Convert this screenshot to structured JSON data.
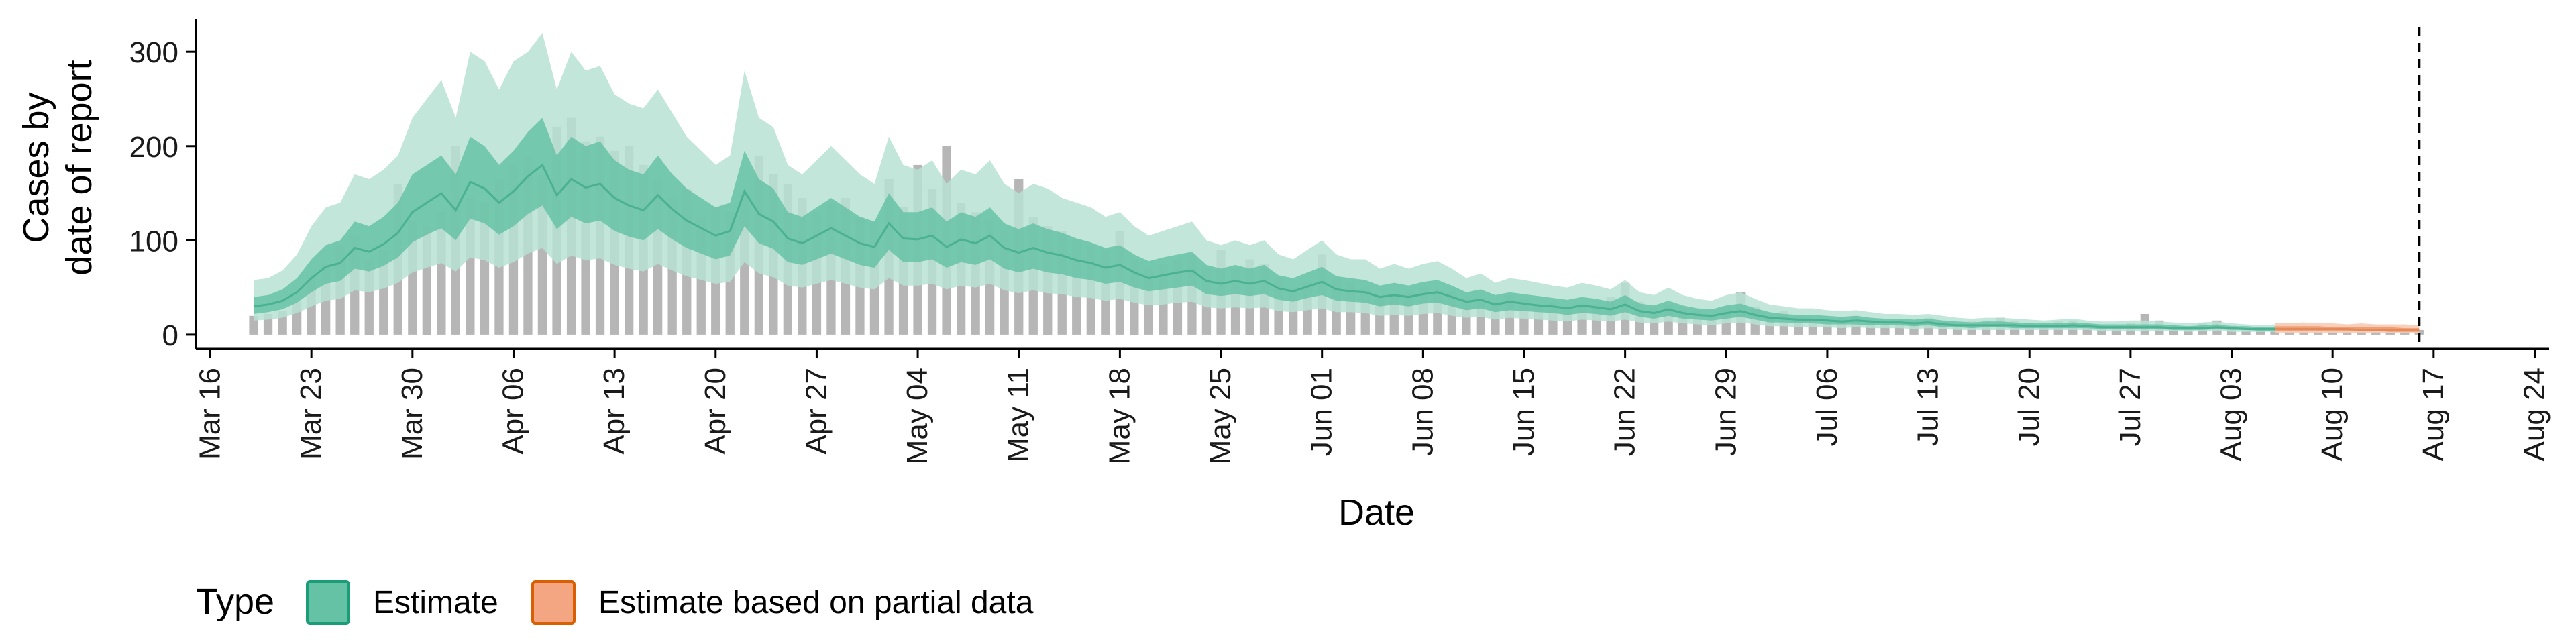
{
  "chart_data": {
    "type": "area",
    "xlabel": "Date",
    "ylabel_lines": [
      "Cases by",
      "date of report"
    ],
    "x_ticks": [
      "Mar 16",
      "Mar 23",
      "Mar 30",
      "Apr 06",
      "Apr 13",
      "Apr 20",
      "Apr 27",
      "May 04",
      "May 11",
      "May 18",
      "May 25",
      "Jun 01",
      "Jun 08",
      "Jun 15",
      "Jun 22",
      "Jun 29",
      "Jul 06",
      "Jul 13",
      "Jul 20",
      "Jul 27",
      "Aug 03",
      "Aug 10",
      "Aug 17",
      "Aug 24"
    ],
    "y_ticks": [
      0,
      100,
      200,
      300
    ],
    "ylim": [
      -15,
      335
    ],
    "x_range": [
      "2020-03-15",
      "2020-08-25"
    ],
    "reference_line_date": "2020-08-16",
    "legend": {
      "title": "Type",
      "placement": "bottom",
      "items": [
        {
          "label": "Estimate",
          "fill": "#66c2a5",
          "border": "#1b9e77"
        },
        {
          "label": "Estimate based on partial data",
          "fill": "#f4a582",
          "border": "#d95f02"
        }
      ]
    },
    "colors": {
      "bars": "#a9a9a9",
      "estimate_outer": "#b8e2d4",
      "estimate_inner": "#66c2a5",
      "estimate_median": "#3aa885",
      "partial_outer": "#f9cbb5",
      "partial_inner": "#ef9a6e",
      "partial_median": "#e08050"
    },
    "reported_cases": {
      "start": "2020-03-19",
      "values": [
        20,
        22,
        25,
        35,
        60,
        75,
        95,
        105,
        80,
        90,
        160,
        120,
        115,
        130,
        200,
        145,
        140,
        165,
        180,
        190,
        170,
        220,
        230,
        205,
        210,
        195,
        200,
        180,
        165,
        145,
        155,
        125,
        135,
        130,
        150,
        190,
        170,
        160,
        145,
        130,
        140,
        145,
        125,
        120,
        165,
        135,
        180,
        155,
        200,
        140,
        130,
        120,
        110,
        165,
        125,
        115,
        110,
        100,
        95,
        90,
        110,
        80,
        70,
        75,
        80,
        85,
        72,
        90,
        70,
        80,
        75,
        60,
        50,
        55,
        85,
        60,
        55,
        50,
        40,
        42,
        45,
        50,
        48,
        45,
        40,
        38,
        35,
        42,
        38,
        32,
        35,
        28,
        30,
        32,
        40,
        55,
        35,
        30,
        32,
        28,
        25,
        22,
        30,
        45,
        30,
        20,
        25,
        20,
        15,
        15,
        18,
        20,
        16,
        15,
        14,
        15,
        18,
        15,
        12,
        14,
        15,
        18,
        15,
        12,
        10,
        14,
        15,
        12,
        10,
        9,
        12,
        22,
        15,
        10,
        9,
        12,
        15,
        10,
        9,
        8,
        8,
        7,
        6,
        7,
        6,
        6,
        8,
        7,
        6,
        5,
        5
      ]
    },
    "estimate": {
      "start": "2020-03-19",
      "q90_upper": [
        58,
        60,
        68,
        85,
        115,
        135,
        140,
        170,
        165,
        175,
        190,
        230,
        250,
        270,
        230,
        300,
        290,
        260,
        290,
        300,
        320,
        260,
        300,
        280,
        285,
        255,
        245,
        240,
        260,
        235,
        210,
        195,
        180,
        190,
        280,
        230,
        220,
        180,
        170,
        185,
        200,
        185,
        170,
        160,
        210,
        180,
        175,
        185,
        160,
        175,
        170,
        185,
        160,
        150,
        160,
        155,
        145,
        140,
        135,
        125,
        130,
        115,
        105,
        110,
        115,
        120,
        100,
        95,
        100,
        95,
        100,
        85,
        80,
        90,
        100,
        85,
        80,
        80,
        70,
        75,
        70,
        75,
        78,
        70,
        60,
        65,
        55,
        60,
        58,
        55,
        52,
        50,
        55,
        52,
        48,
        58,
        45,
        42,
        50,
        42,
        38,
        36,
        42,
        45,
        38,
        32,
        30,
        28,
        28,
        26,
        25,
        26,
        24,
        22,
        22,
        21,
        22,
        20,
        18,
        17,
        18,
        18,
        17,
        16,
        15,
        16,
        17,
        15,
        14,
        14,
        15,
        15,
        14,
        13,
        12,
        13,
        14,
        12,
        11,
        10,
        11,
        12,
        11,
        10,
        9,
        10,
        10,
        10,
        9,
        9,
        9
      ],
      "q50_upper": [
        40,
        42,
        48,
        60,
        80,
        95,
        100,
        120,
        115,
        125,
        140,
        170,
        180,
        190,
        170,
        210,
        200,
        180,
        195,
        215,
        230,
        190,
        210,
        200,
        205,
        185,
        175,
        170,
        190,
        170,
        155,
        145,
        135,
        140,
        195,
        165,
        155,
        130,
        125,
        135,
        145,
        135,
        125,
        120,
        150,
        130,
        130,
        135,
        120,
        130,
        125,
        135,
        118,
        112,
        118,
        112,
        108,
        102,
        98,
        92,
        95,
        85,
        78,
        82,
        85,
        88,
        74,
        70,
        74,
        70,
        74,
        63,
        60,
        66,
        72,
        62,
        60,
        58,
        52,
        55,
        52,
        56,
        58,
        52,
        45,
        48,
        42,
        45,
        43,
        41,
        39,
        37,
        40,
        38,
        35,
        42,
        33,
        31,
        36,
        31,
        28,
        27,
        31,
        33,
        28,
        24,
        22,
        21,
        21,
        20,
        19,
        20,
        18,
        17,
        17,
        16,
        17,
        15,
        14,
        13,
        14,
        14,
        13,
        12,
        12,
        12,
        13,
        12,
        11,
        11,
        11,
        11,
        11,
        10,
        9,
        10,
        11,
        9,
        9,
        8,
        8,
        9,
        8,
        8,
        7,
        7,
        7,
        7,
        7,
        7,
        7
      ],
      "median": [
        30,
        32,
        36,
        45,
        60,
        72,
        76,
        92,
        88,
        96,
        108,
        130,
        140,
        150,
        132,
        162,
        155,
        140,
        152,
        168,
        180,
        148,
        165,
        156,
        160,
        145,
        137,
        132,
        148,
        133,
        121,
        113,
        105,
        110,
        152,
        128,
        120,
        102,
        97,
        105,
        113,
        105,
        97,
        93,
        118,
        102,
        101,
        105,
        93,
        101,
        97,
        105,
        92,
        87,
        92,
        87,
        84,
        79,
        76,
        71,
        74,
        66,
        60,
        63,
        66,
        68,
        57,
        54,
        57,
        54,
        57,
        49,
        46,
        51,
        56,
        48,
        46,
        45,
        40,
        42,
        40,
        43,
        45,
        40,
        35,
        37,
        32,
        35,
        33,
        31,
        30,
        28,
        31,
        29,
        27,
        32,
        25,
        23,
        27,
        23,
        21,
        20,
        23,
        25,
        21,
        18,
        17,
        16,
        16,
        15,
        14,
        15,
        14,
        13,
        13,
        12,
        13,
        11,
        10,
        10,
        10,
        10,
        10,
        9,
        9,
        9,
        10,
        9,
        8,
        8,
        8,
        8,
        8,
        7,
        7,
        7,
        8,
        7,
        6,
        6,
        6,
        7,
        6,
        6,
        5,
        5,
        5,
        5,
        5,
        5,
        5
      ],
      "q50_lower": [
        22,
        24,
        27,
        34,
        45,
        54,
        57,
        70,
        67,
        73,
        82,
        98,
        106,
        113,
        100,
        123,
        118,
        106,
        115,
        128,
        137,
        112,
        125,
        118,
        121,
        110,
        104,
        100,
        112,
        101,
        92,
        86,
        80,
        84,
        115,
        97,
        91,
        77,
        74,
        80,
        86,
        80,
        74,
        71,
        90,
        77,
        77,
        80,
        71,
        77,
        74,
        80,
        70,
        66,
        70,
        66,
        64,
        60,
        58,
        54,
        56,
        50,
        46,
        48,
        50,
        52,
        43,
        41,
        43,
        41,
        43,
        37,
        35,
        39,
        42,
        36,
        35,
        34,
        30,
        32,
        30,
        33,
        34,
        30,
        26,
        28,
        24,
        26,
        25,
        24,
        23,
        21,
        23,
        22,
        20,
        24,
        19,
        17,
        20,
        17,
        16,
        15,
        17,
        19,
        16,
        13,
        13,
        12,
        12,
        11,
        11,
        11,
        10,
        10,
        10,
        9,
        10,
        8,
        8,
        7,
        8,
        8,
        7,
        7,
        7,
        7,
        7,
        7,
        6,
        6,
        6,
        6,
        6,
        5,
        5,
        5,
        6,
        5,
        5,
        4,
        4,
        5,
        4,
        4,
        4,
        4,
        4,
        4,
        4,
        4,
        4
      ],
      "q90_lower": [
        15,
        16,
        18,
        23,
        30,
        36,
        38,
        47,
        45,
        49,
        55,
        66,
        71,
        76,
        67,
        82,
        79,
        71,
        77,
        86,
        92,
        75,
        84,
        79,
        81,
        74,
        70,
        67,
        75,
        68,
        62,
        58,
        54,
        56,
        77,
        65,
        61,
        52,
        50,
        54,
        58,
        54,
        50,
        48,
        60,
        52,
        52,
        54,
        48,
        52,
        50,
        54,
        47,
        44,
        47,
        44,
        43,
        40,
        39,
        36,
        38,
        34,
        31,
        32,
        34,
        35,
        29,
        28,
        29,
        28,
        29,
        25,
        24,
        26,
        28,
        24,
        24,
        23,
        20,
        21,
        20,
        22,
        23,
        20,
        18,
        19,
        16,
        18,
        17,
        16,
        15,
        14,
        16,
        15,
        14,
        16,
        13,
        12,
        14,
        12,
        11,
        10,
        12,
        13,
        11,
        9,
        9,
        8,
        8,
        8,
        7,
        8,
        7,
        7,
        7,
        6,
        7,
        6,
        5,
        5,
        5,
        5,
        5,
        5,
        5,
        5,
        5,
        5,
        4,
        4,
        4,
        4,
        4,
        4,
        3,
        4,
        4,
        3,
        3,
        3,
        3,
        3,
        3,
        3,
        3,
        3,
        3,
        3,
        3,
        3,
        3
      ]
    },
    "partial_estimate": {
      "start": "2020-08-06",
      "q90_upper": [
        12,
        12,
        13,
        12,
        12,
        11,
        12,
        11,
        11,
        11,
        10
      ],
      "q50_upper": [
        9,
        9,
        9,
        9,
        8,
        8,
        8,
        8,
        8,
        7,
        7
      ],
      "median": [
        6,
        6,
        6,
        6,
        6,
        6,
        5,
        5,
        5,
        5,
        5
      ],
      "q50_lower": [
        4,
        4,
        4,
        4,
        4,
        4,
        4,
        4,
        3,
        3,
        3
      ],
      "q90_lower": [
        2,
        2,
        2,
        2,
        2,
        2,
        2,
        2,
        2,
        2,
        2
      ]
    }
  }
}
